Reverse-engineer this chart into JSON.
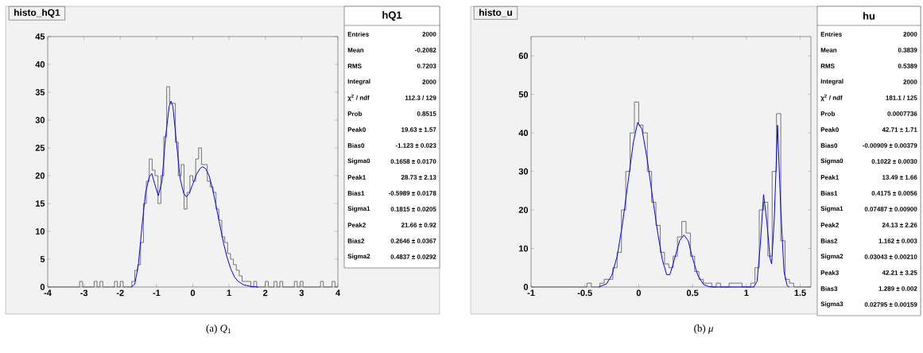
{
  "chart_data": [
    {
      "type": "histogram",
      "title": "histo_hQ1",
      "color": "#555555",
      "bins": [
        -4,
        -3.92,
        -3.84,
        -3.76,
        -3.68,
        -3.6,
        -3.52,
        -3.44,
        -3.36,
        -3.28,
        -3.2,
        -3.12,
        -3.04,
        -2.96,
        -2.88,
        -2.8,
        -2.72,
        -2.64,
        -2.56,
        -2.48,
        -2.4,
        -2.32,
        -2.24,
        -2.16,
        -2.08,
        -2,
        -1.92,
        -1.84,
        -1.76,
        -1.68,
        -1.6,
        -1.52,
        -1.44,
        -1.36,
        -1.28,
        -1.2,
        -1.12,
        -1.04,
        -0.96,
        -0.88,
        -0.8,
        -0.72,
        -0.64,
        -0.56,
        -0.48,
        -0.4,
        -0.32,
        -0.24,
        -0.16,
        -0.08,
        0,
        0.08,
        0.16,
        0.24,
        0.32,
        0.4,
        0.48,
        0.56,
        0.64,
        0.72,
        0.8,
        0.88,
        0.96,
        1.04,
        1.12,
        1.2,
        1.28,
        1.36,
        1.44,
        1.52,
        1.6,
        1.68,
        1.76,
        1.84,
        1.92,
        2,
        2.08,
        2.16,
        2.24,
        2.32,
        2.4,
        2.48,
        2.56,
        2.64,
        2.72,
        2.8,
        2.88,
        2.96,
        3.04,
        3.12,
        3.2,
        3.28,
        3.36,
        3.44,
        3.52,
        3.6,
        3.68,
        3.76,
        3.84,
        3.92,
        4
      ],
      "values": [
        0,
        0,
        0,
        0,
        0,
        0,
        0,
        0,
        0,
        0,
        0,
        1,
        0,
        0,
        0,
        0,
        1,
        0,
        1,
        0,
        0,
        0,
        0,
        1,
        0,
        1,
        0,
        0,
        0,
        1,
        3,
        4,
        8,
        15,
        19,
        23,
        21,
        20,
        15,
        20,
        27,
        36,
        33,
        33,
        26,
        20,
        22,
        14,
        17,
        20,
        19,
        23,
        25,
        22,
        22,
        19,
        18,
        17,
        14,
        12,
        9,
        8,
        6,
        5,
        4,
        3,
        2,
        1,
        1,
        1,
        0,
        1,
        0,
        0,
        0,
        1,
        0,
        0,
        1,
        0,
        1,
        0,
        0,
        0,
        0,
        1,
        0,
        1,
        0,
        0,
        0,
        0,
        0,
        0,
        1,
        0,
        0,
        0,
        1,
        0
      ],
      "series": [
        {
          "type": "line",
          "color": "#0000ff",
          "x": [
            -1.7,
            -1.6,
            -1.5,
            -1.4,
            -1.3,
            -1.2,
            -1.13,
            -1.05,
            -0.95,
            -0.85,
            -0.75,
            -0.65,
            -0.6,
            -0.55,
            -0.45,
            -0.35,
            -0.25,
            -0.18,
            -0.1,
            0,
            0.1,
            0.2,
            0.27,
            0.35,
            0.45,
            0.55,
            0.65,
            0.75,
            0.85,
            0.95,
            1.05,
            1.15,
            1.25,
            1.4,
            1.6,
            1.8
          ],
          "values": [
            0,
            0.5,
            4,
            11,
            17,
            19.8,
            20.4,
            18.5,
            16.4,
            19,
            27,
            32.5,
            33.4,
            32.5,
            26,
            19.5,
            16.8,
            16.2,
            16.8,
            18.5,
            20.2,
            21.3,
            21.6,
            21.3,
            20,
            17.5,
            14.3,
            11,
            7.8,
            5.2,
            3.2,
            1.8,
            1,
            0.4,
            0.1,
            0
          ]
        }
      ],
      "xlim": [
        -4,
        4
      ],
      "ylim": [
        0,
        45
      ],
      "xticks": [
        -4,
        -3,
        -2,
        -1,
        0,
        1,
        2,
        3,
        4
      ],
      "yticks": [
        0,
        5,
        10,
        15,
        20,
        25,
        30,
        35,
        40,
        45
      ],
      "annotations": [
        "(a) *Q*$_{1}$",
        "hQ1",
        "Entries",
        "2000",
        "Mean",
        "-0.2082",
        "RMS",
        "0.7203",
        "Integral",
        "2000",
        "χ$^{2}$ / ndf",
        "112.3 / 129",
        "Prob",
        "0.8515",
        "Peak0",
        "19.63 ± 1.57",
        "Bias0",
        "-1.123 ± 0.023",
        "Sigma0",
        "0.1658 ± 0.0170",
        "Peak1",
        "28.73 ± 2.13",
        "Bias1",
        "-0.5989 ± 0.0178",
        "Sigma1",
        "0.1815 ± 0.0205",
        "Peak2",
        "21.66 ± 0.92",
        "Bias2",
        "0.2646 ± 0.0367",
        "Sigma2",
        "0.4837 ± 0.0292"
      ]
    },
    {
      "type": "histogram",
      "title": "histo_u",
      "color": "#555555",
      "bins": [
        -1,
        -0.96,
        -0.92,
        -0.88,
        -0.84,
        -0.8,
        -0.76,
        -0.72,
        -0.68,
        -0.64,
        -0.6,
        -0.56,
        -0.52,
        -0.48,
        -0.44,
        -0.4,
        -0.36,
        -0.32,
        -0.28,
        -0.24,
        -0.2,
        -0.16,
        -0.12,
        -0.08,
        -0.04,
        0,
        0.04,
        0.08,
        0.12,
        0.16,
        0.2,
        0.24,
        0.28,
        0.32,
        0.36,
        0.4,
        0.44,
        0.48,
        0.52,
        0.56,
        0.6,
        0.64,
        0.68,
        0.72,
        0.76,
        0.8,
        0.84,
        0.88,
        0.92,
        0.96,
        1,
        1.04,
        1.08,
        1.12,
        1.16,
        1.2,
        1.24,
        1.28,
        1.32,
        1.36,
        1.4,
        1.44,
        1.48,
        1.52,
        1.56,
        1.6
      ],
      "values": [
        0,
        0,
        0,
        0,
        0,
        0,
        0,
        0,
        0,
        0,
        0,
        0,
        0,
        1,
        0,
        0,
        1,
        2,
        2,
        5,
        9,
        20,
        30,
        40,
        48,
        42,
        40,
        30,
        22,
        16,
        9,
        6,
        5,
        8,
        13,
        17,
        14,
        8,
        4,
        2,
        1,
        1,
        0,
        1,
        0,
        0,
        1,
        1,
        1,
        0,
        0,
        1,
        5,
        20,
        22,
        8,
        30,
        45,
        12,
        2,
        1,
        0,
        0,
        0,
        0
      ],
      "series": [
        {
          "type": "line",
          "color": "#0000ff",
          "x": [
            -0.37,
            -0.3,
            -0.25,
            -0.2,
            -0.15,
            -0.1,
            -0.05,
            -0.01,
            0.03,
            0.08,
            0.13,
            0.18,
            0.22,
            0.26,
            0.29,
            0.33,
            0.38,
            0.42,
            0.46,
            0.5,
            0.55,
            0.6,
            0.65,
            0.7,
            1.07,
            1.1,
            1.13,
            1.16,
            1.19,
            1.22,
            1.235,
            1.26,
            1.29,
            1.32,
            1.35,
            1.38,
            1.4
          ],
          "values": [
            0,
            0.8,
            3,
            8,
            16.5,
            27,
            37.5,
            42.7,
            41,
            33,
            23,
            13.5,
            7,
            3.2,
            3.2,
            7,
            12,
            13.5,
            12,
            7.5,
            3,
            0.7,
            0.1,
            0,
            0,
            1.5,
            11,
            24,
            17,
            7.5,
            6,
            18,
            42,
            20,
            4,
            0.3,
            0
          ]
        }
      ],
      "xlim": [
        -1,
        1.6
      ],
      "ylim": [
        0,
        65
      ],
      "xticks": [
        -1,
        -0.5,
        0,
        0.5,
        1,
        1.5
      ],
      "yticks": [
        0,
        10,
        20,
        30,
        40,
        50,
        60
      ],
      "annotations": [
        "(b) *μ*",
        "hu",
        "Entries",
        "2000",
        "Mean",
        "0.3839",
        "RMS",
        "0.5389",
        "Integral",
        "2000",
        "χ$^{2}$ / ndf",
        "181.1 / 125",
        "Prob",
        "0.0007736",
        "Peak0",
        "42.71 ± 1.71",
        "Bias0",
        "-0.00909 ± 0.00379",
        "Sigma0",
        "0.1022 ± 0.0030",
        "Peak1",
        "13.49 ± 1.66",
        "Bias1",
        "0.4175 ± 0.0056",
        "Sigma1",
        "0.07487 ± 0.00900",
        "Peak2",
        "24.13 ± 2.26",
        "Bias2",
        "1.162 ± 0.003",
        "Sigma2",
        "0.03043 ± 0.00210",
        "Peak3",
        "42.21 ± 3.25",
        "Bias3",
        "1.289 ± 0.002",
        "Sigma3",
        "0.02795 ± 0.00159"
      ]
    }
  ]
}
